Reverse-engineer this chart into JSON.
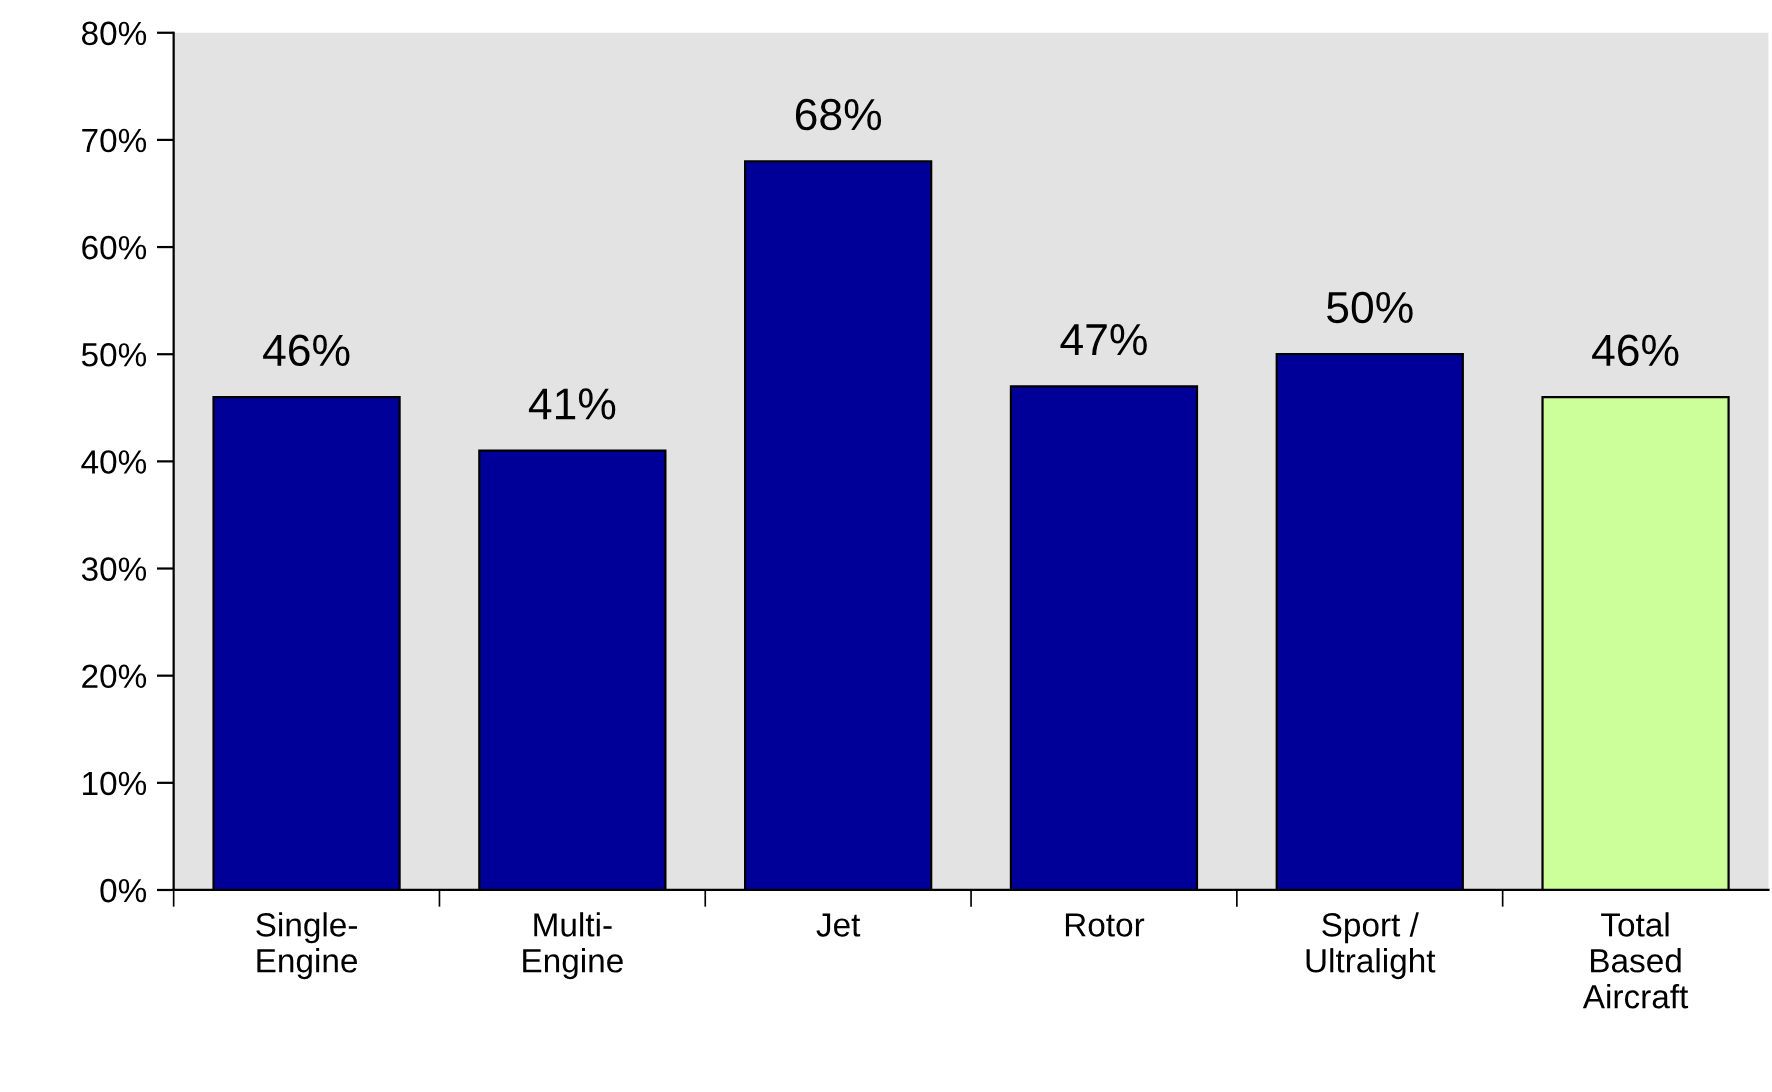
{
  "chart_data": {
    "type": "bar",
    "categories": [
      "Single-\nEngine",
      "Multi-\nEngine",
      "Jet",
      "Rotor",
      "Sport /\nUltralight",
      "Total\nBased\nAircraft"
    ],
    "values": [
      46,
      41,
      68,
      47,
      50,
      46
    ],
    "colors": [
      "#000099",
      "#000099",
      "#000099",
      "#000099",
      "#000099",
      "#ccff99"
    ],
    "value_labels": [
      "46%",
      "41%",
      "68%",
      "47%",
      "50%",
      "46%"
    ],
    "ylim": [
      0,
      80
    ],
    "yticks": [
      {
        "value": 0,
        "label": "0%"
      },
      {
        "value": 10,
        "label": "10%"
      },
      {
        "value": 20,
        "label": "20%"
      },
      {
        "value": 30,
        "label": "30%"
      },
      {
        "value": 40,
        "label": "40%"
      },
      {
        "value": 50,
        "label": "50%"
      },
      {
        "value": 60,
        "label": "60%"
      },
      {
        "value": 70,
        "label": "70%"
      },
      {
        "value": 80,
        "label": "80%"
      }
    ],
    "grid": false,
    "legend": false
  }
}
